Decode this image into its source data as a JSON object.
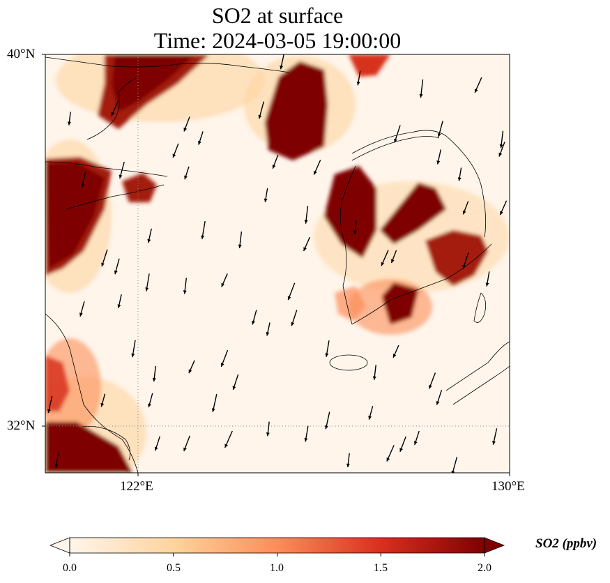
{
  "title": {
    "line1": "SO2 at surface",
    "line2": "Time: 2024-03-05 19:00:00"
  },
  "axes": {
    "lat_labels": [
      "40°N",
      "32°N"
    ],
    "lon_labels": [
      "122°E",
      "130°E"
    ],
    "lon_range": [
      120.4,
      130
    ],
    "lat_range": [
      31,
      40
    ]
  },
  "colorbar": {
    "title": "SO2 (ppbv)",
    "ticks": [
      "0.0",
      "0.5",
      "1.0",
      "1.5",
      "2.0"
    ],
    "range": [
      0,
      2
    ],
    "colormap": "OrRd-like",
    "colors": [
      "#fff5eb",
      "#fdd49e",
      "#fc8d59",
      "#d7301f",
      "#7f0000"
    ],
    "extend": "both"
  },
  "wind_vectors": "black arrows, mostly pointing south-southwest",
  "gridlines": "dotted grey at 122°E and 32°N"
}
